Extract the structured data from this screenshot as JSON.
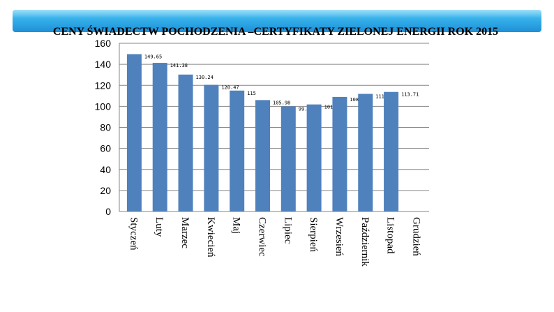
{
  "colors": {
    "header_bar": "#2fa9e6",
    "bar": "#4f81bd",
    "axis": "#868686",
    "gridline": "#868686",
    "text": "#000000",
    "background": "#ffffff"
  },
  "chart_data": {
    "type": "bar",
    "title": "CENY ŚWIADECTW POCHODZENIA –CERTYFIKATY ZIELONEJ ENERGII ROK 2015",
    "xlabel": "",
    "ylabel": "",
    "ylim": [
      0,
      160
    ],
    "yticks": [
      0,
      20,
      40,
      60,
      80,
      100,
      120,
      140,
      160
    ],
    "grid": true,
    "legend": "none",
    "categories": [
      "Styczeń",
      "Luty",
      "Marzec",
      "Kwiecień",
      "Maj",
      "Czerwiec",
      "Lipiec",
      "Sierpień",
      "Wrzesień",
      "Październik",
      "Listopad",
      "Grudzień"
    ],
    "values": [
      149.65,
      141.38,
      130.24,
      120.47,
      115,
      105.98,
      99.91,
      101.82,
      108.96,
      111.87,
      113.71,
      null
    ],
    "data_labels": [
      "149.65",
      "141.38",
      "130.24",
      "120.47",
      "115",
      "105.98",
      "99.91",
      "101.82",
      "108.96",
      "111.87",
      "113.71",
      ""
    ]
  }
}
